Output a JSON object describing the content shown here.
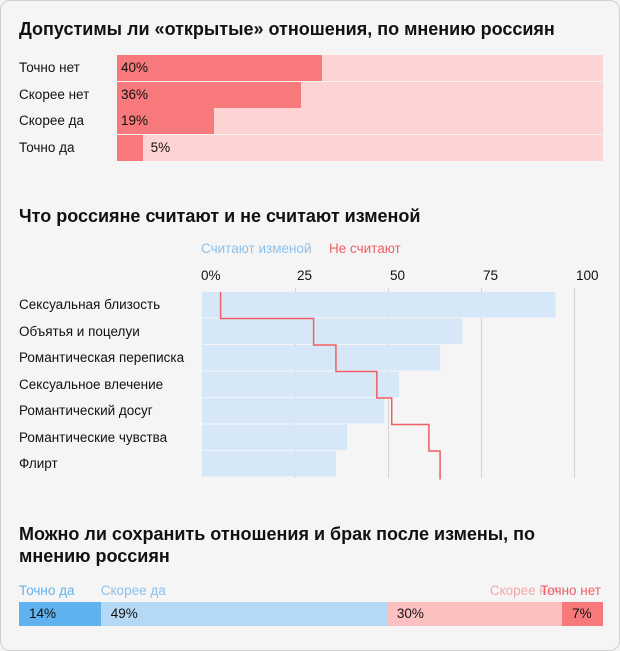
{
  "sections": {
    "open_relations": {
      "title": "Допустимы ли «открытые» отношения, по мнению россиян"
    },
    "cheating": {
      "title": "Что россияне считают и не считают изменой",
      "legend": {
        "yes": "Считают изменой",
        "no": "Не считают"
      }
    },
    "after_cheating": {
      "title": "Можно ли сохранить отношения и брак после измены, по мнению россиян"
    }
  },
  "colors": {
    "red_bar": "#f7797b",
    "red_bg": "#fdd3d3",
    "blue_bar": "#d6e8f8",
    "blue_dark": "#5fb2ee",
    "blue_mid": "#b4d9f6",
    "pink_light": "#fcc0c0",
    "line_red": "#ef5e64"
  },
  "chart_data": [
    {
      "type": "bar",
      "orientation": "horizontal",
      "title": "Допустимы ли «открытые» отношения, по мнению россиян",
      "categories": [
        "Точно нет",
        "Скорее нет",
        "Скорее да",
        "Точно да"
      ],
      "values": [
        40,
        36,
        19,
        5
      ],
      "value_labels": [
        "40%",
        "36%",
        "19%",
        "5%"
      ],
      "xlim": [
        0,
        100
      ]
    },
    {
      "type": "bar",
      "orientation": "horizontal",
      "title": "Что россияне считают и не считают изменой",
      "categories": [
        "Сексуальная близость",
        "Объятья и поцелуи",
        "Романтическая переписка",
        "Сексуальное влечение",
        "Романтический досуг",
        "Романтические чувства",
        "Флирт"
      ],
      "ticks": [
        "0%",
        "25",
        "50",
        "75",
        "100"
      ],
      "xlim": [
        0,
        100
      ],
      "series": [
        {
          "name": "Считают изменой",
          "values": [
            95,
            70,
            64,
            53,
            49,
            39,
            36
          ]
        },
        {
          "name": "Не считают",
          "values": [
            5,
            30,
            36,
            47,
            51,
            61,
            64
          ]
        }
      ]
    },
    {
      "type": "bar",
      "orientation": "horizontal-stacked",
      "title": "Можно ли сохранить отношения и брак после измены, по мнению россиян",
      "categories": [
        "Точно да",
        "Скорее да",
        "Скорее нет",
        "Точно нет"
      ],
      "values": [
        14,
        49,
        30,
        7
      ],
      "value_labels": [
        "14%",
        "49%",
        "30%",
        "7%"
      ]
    }
  ]
}
